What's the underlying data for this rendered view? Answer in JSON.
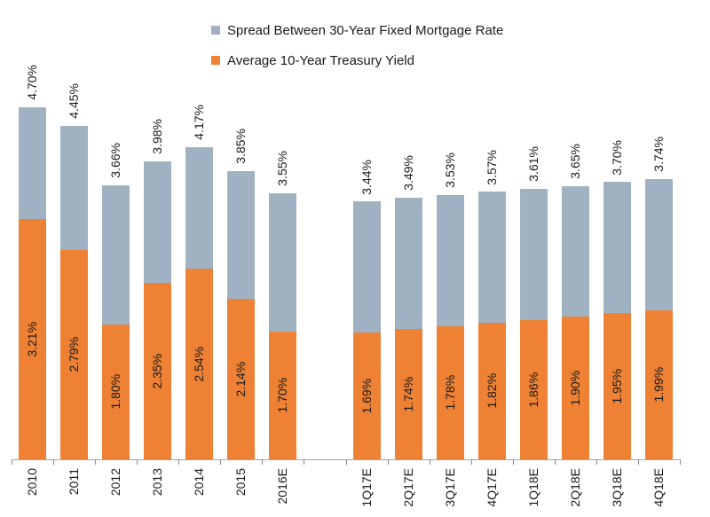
{
  "legend": {
    "items": [
      {
        "label": "Spread Between 30-Year Fixed Mortgage Rate",
        "color": "#A0B1C1"
      },
      {
        "label": "Average 10-Year Treasury Yield",
        "color": "#EE8133"
      }
    ]
  },
  "chart_data": {
    "type": "bar",
    "stacked": true,
    "title": "",
    "xlabel": "",
    "ylabel": "",
    "grid": false,
    "legend_position": "top-center",
    "ylim": [
      0,
      5.1
    ],
    "background_color": "#FFFFFF",
    "categories": [
      "2010",
      "2011",
      "2012",
      "2013",
      "2014",
      "2015",
      "2016E",
      "",
      "1Q17E",
      "2Q17E",
      "3Q17E",
      "4Q17E",
      "1Q18E",
      "2Q18E",
      "3Q18E",
      "4Q18E"
    ],
    "series": [
      {
        "name": "Average 10-Year Treasury Yield",
        "color": "#EE8133",
        "values": [
          3.21,
          2.79,
          1.8,
          2.35,
          2.54,
          2.14,
          1.7,
          null,
          1.69,
          1.74,
          1.78,
          1.82,
          1.86,
          1.9,
          1.95,
          1.99
        ],
        "labels": [
          "3.21%",
          "2.79%",
          "1.80%",
          "2.35%",
          "2.54%",
          "2.14%",
          "1.70%",
          null,
          "1.69%",
          "1.74%",
          "1.78%",
          "1.82%",
          "1.86%",
          "1.90%",
          "1.95%",
          "1.99%"
        ]
      },
      {
        "name": "Spread Between 30-Year Fixed Mortgage Rate",
        "color": "#A0B1C1",
        "values": [
          1.49,
          1.66,
          1.86,
          1.63,
          1.63,
          1.71,
          1.85,
          null,
          1.75,
          1.75,
          1.75,
          1.75,
          1.75,
          1.75,
          1.75,
          1.75
        ]
      }
    ],
    "total_labels": [
      "4.70%",
      "4.45%",
      "3.66%",
      "3.98%",
      "4.17%",
      "3.85%",
      "3.55%",
      null,
      "3.44%",
      "3.49%",
      "3.53%",
      "3.57%",
      "3.61%",
      "3.65%",
      "3.70%",
      "3.74%"
    ],
    "label_color": "#1a1a1a"
  }
}
